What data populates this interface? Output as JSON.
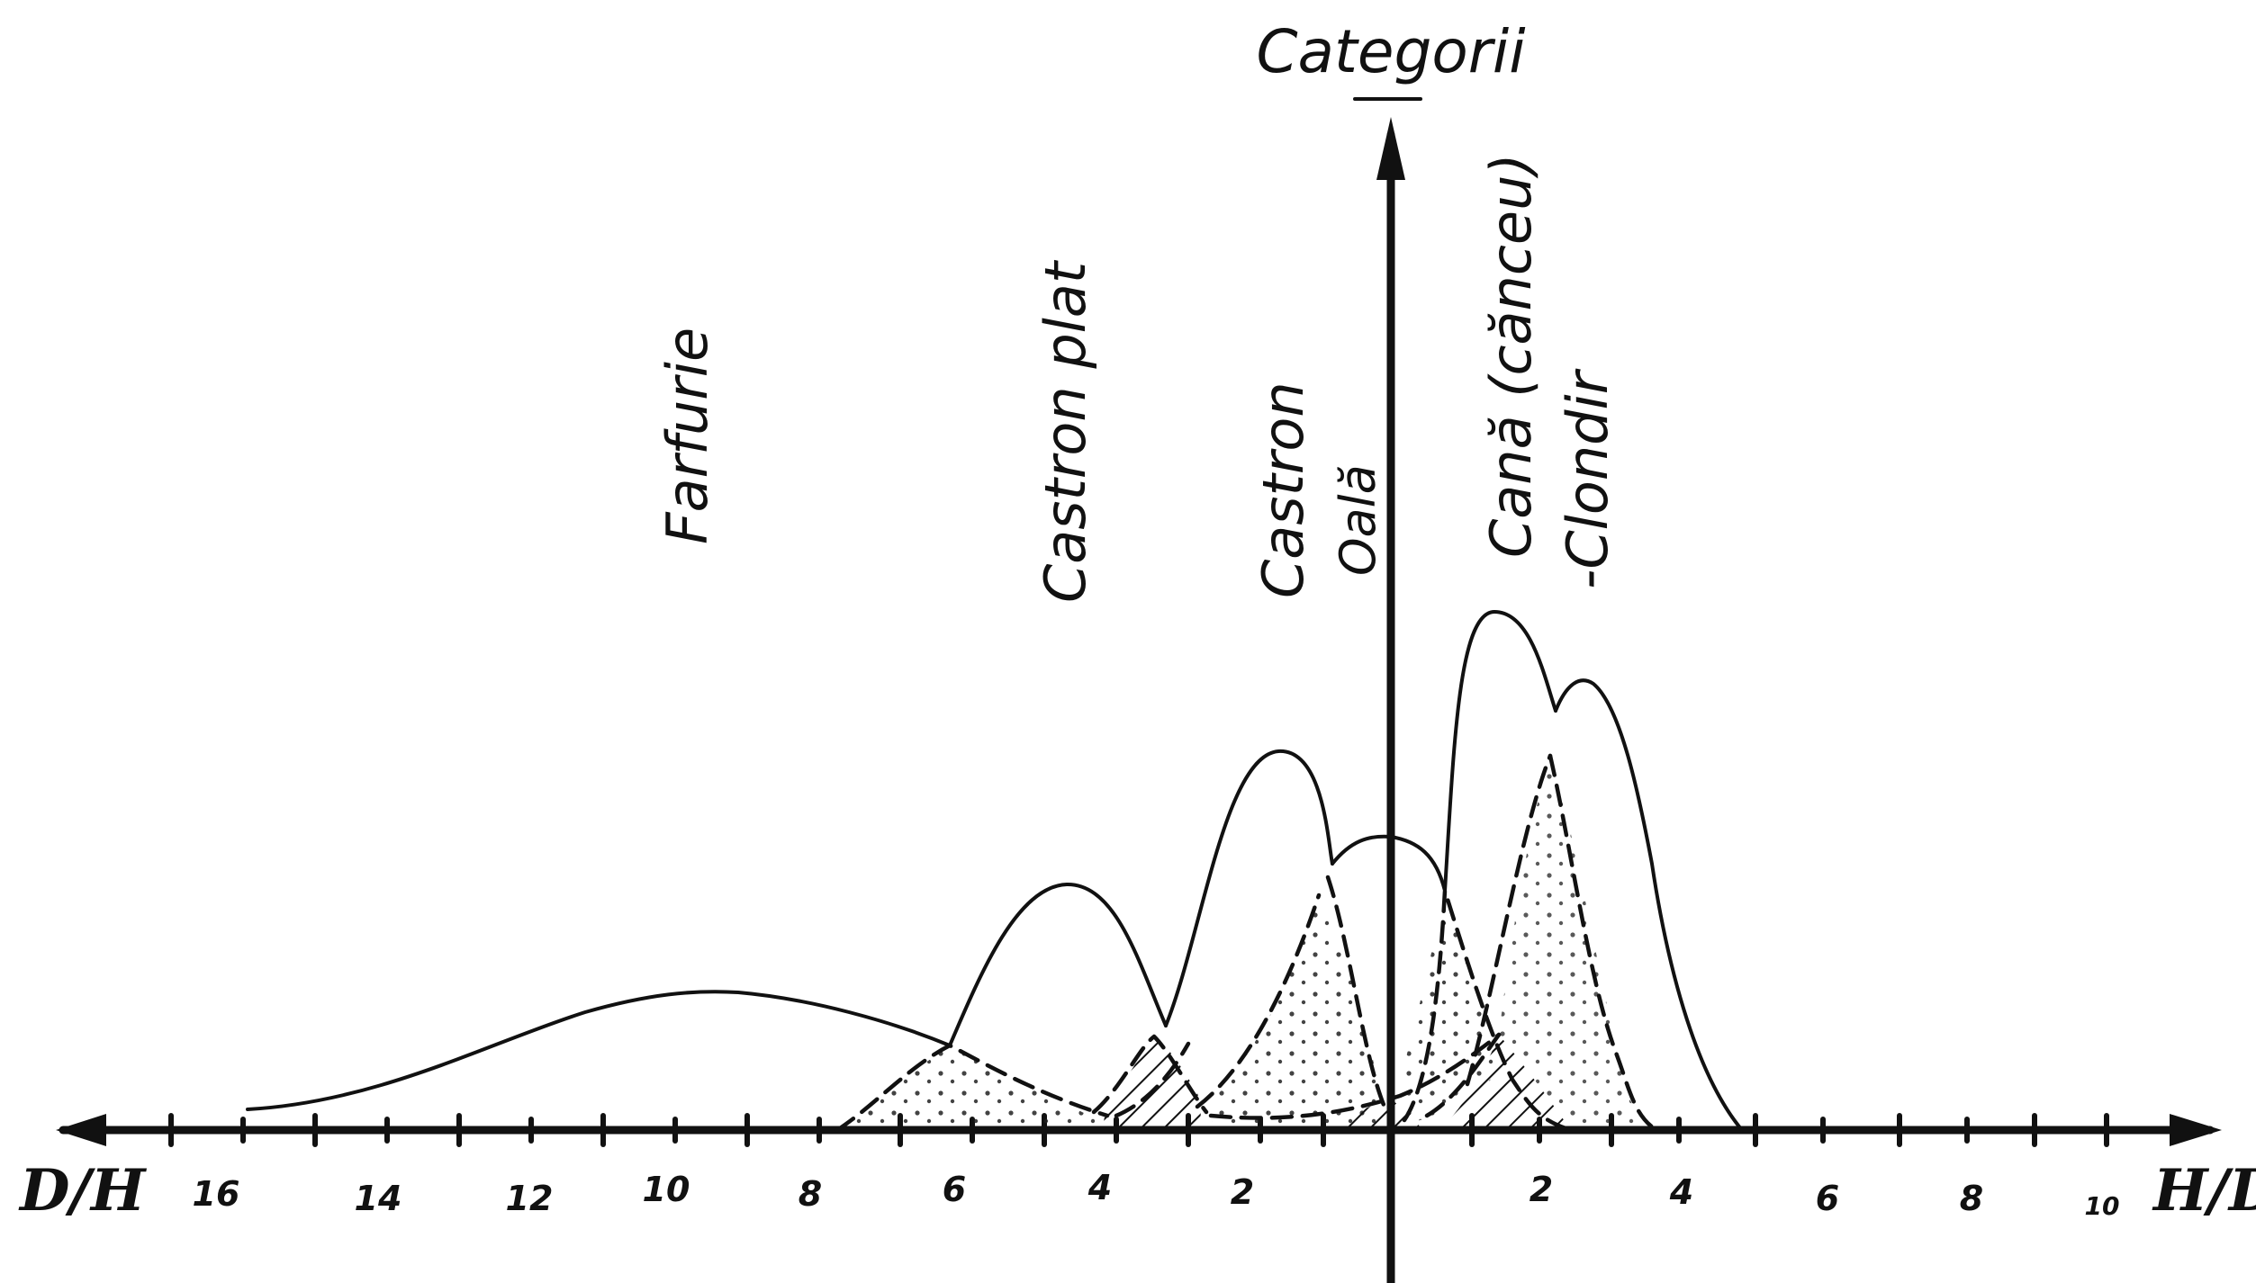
{
  "axis": {
    "y_label": "Categorii",
    "x_left_label": "D/H",
    "x_right_label": "H/D"
  },
  "ticks_left": [
    "16",
    "14",
    "12",
    "10",
    "8",
    "6",
    "4",
    "2"
  ],
  "ticks_right": [
    "2",
    "4",
    "6",
    "8",
    "10"
  ],
  "categories": [
    {
      "id": "farfurie",
      "label": "Farfurie"
    },
    {
      "id": "castron-plat",
      "label": "Castron plat"
    },
    {
      "id": "castron",
      "label": "Castron"
    },
    {
      "id": "oala",
      "label": "Oală"
    },
    {
      "id": "cana",
      "label": "Cană (căncеu)"
    },
    {
      "id": "clondir",
      "label": "-Clondir"
    }
  ]
}
